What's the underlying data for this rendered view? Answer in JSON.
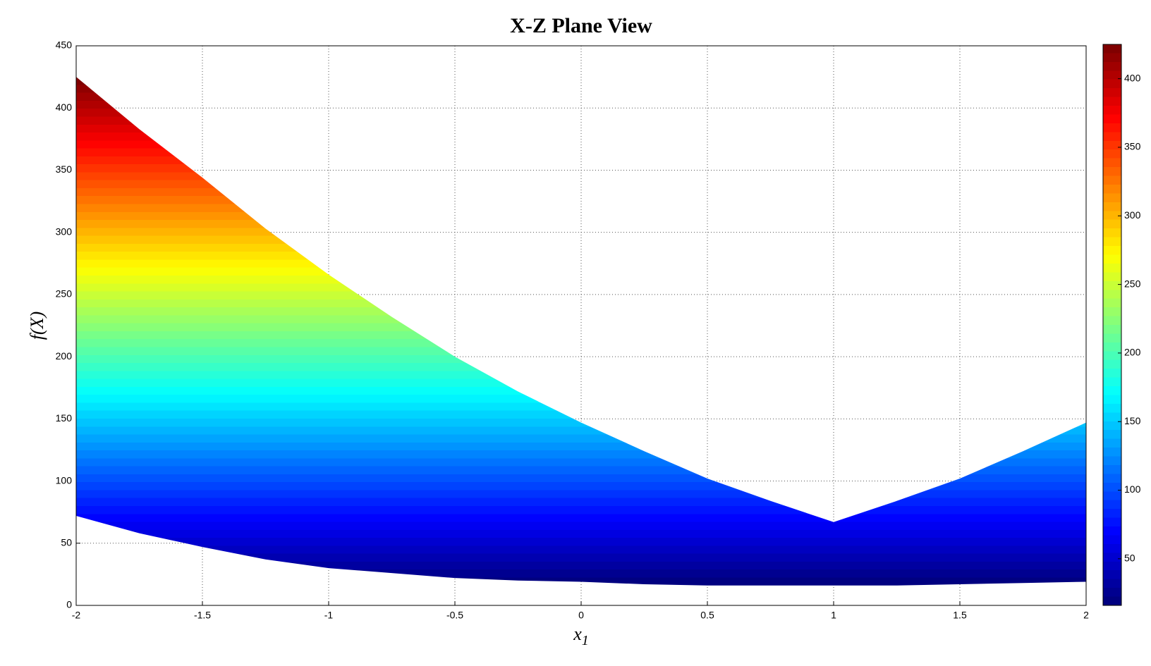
{
  "chart_data": {
    "type": "range-area",
    "title": "X-Z Plane View",
    "x_label": {
      "text": "x",
      "subscript": "1"
    },
    "y_label": "f(X)",
    "x": [
      -2,
      -1.75,
      -1.5,
      -1.25,
      -1,
      -0.75,
      -0.5,
      -0.25,
      0,
      0.25,
      0.5,
      0.75,
      1,
      1.25,
      1.5,
      1.75,
      2
    ],
    "series": [
      {
        "values": [
          425,
          383,
          344,
          303,
          266,
          232,
          200,
          172,
          147,
          124,
          102,
          84,
          67,
          84,
          102,
          124,
          147
        ]
      },
      {
        "values": [
          72,
          58,
          47,
          37,
          30,
          26,
          22,
          20,
          19,
          17,
          16,
          16,
          16,
          16,
          17,
          18,
          19
        ]
      }
    ],
    "xlim": [
      -2,
      2
    ],
    "xticks": [
      -2,
      -1.5,
      -1,
      -0.5,
      0,
      0.5,
      1,
      1.5,
      2
    ],
    "ylim": [
      0,
      450
    ],
    "yticks": [
      0,
      50,
      100,
      150,
      200,
      250,
      300,
      350,
      400,
      450
    ],
    "grid": true,
    "colormap": "jet",
    "clim": [
      16,
      425
    ],
    "colorbar_ticks": [
      50,
      100,
      150,
      200,
      250,
      300,
      350,
      400
    ]
  }
}
